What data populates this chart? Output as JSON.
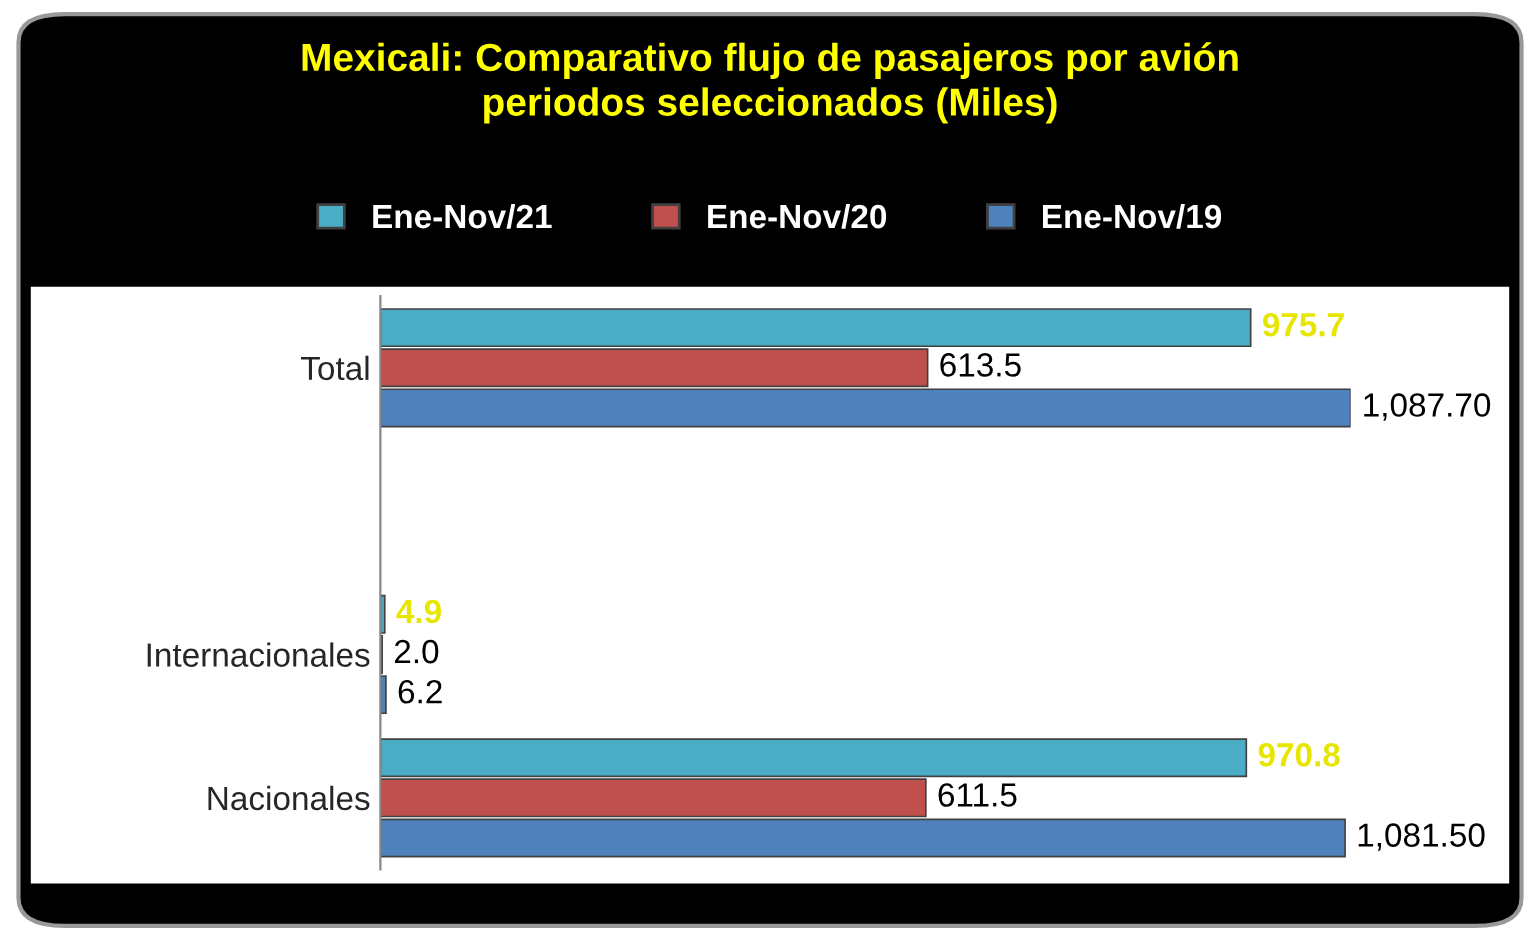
{
  "chart_data": {
    "type": "bar",
    "orientation": "horizontal",
    "title": "Mexicali: Comparativo flujo de pasajeros por avión periodos seleccionados (Miles)",
    "categories": [
      "Total",
      null,
      "Internacionales",
      "Nacionales"
    ],
    "series": [
      {
        "name": "Ene-Nov/21",
        "color": "#4bacc6",
        "values": [
          975.7,
          null,
          4.9,
          970.8
        ],
        "value_labels": [
          "975.7",
          null,
          "4.9",
          "970.8"
        ]
      },
      {
        "name": "Ene-Nov/20",
        "color": "#c0504d",
        "values": [
          613.5,
          null,
          2.0,
          611.5
        ],
        "value_labels": [
          "613.5",
          null,
          "2.0",
          "611.5"
        ]
      },
      {
        "name": "Ene-Nov/19",
        "color": "#4f81bd",
        "values": [
          1087.7,
          null,
          6.2,
          1081.5
        ],
        "value_labels": [
          "1,087.70",
          null,
          "6.2",
          "1,081.50"
        ]
      }
    ],
    "legend": "top",
    "tick_labels": "y"
  }
}
